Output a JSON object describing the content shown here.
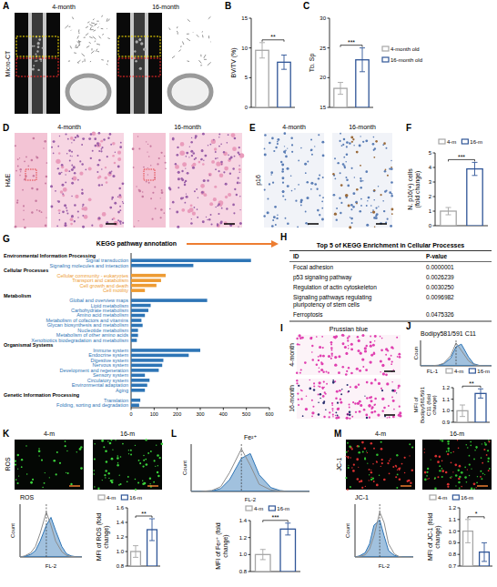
{
  "chart_data": [
    {
      "panel": "B",
      "type": "bar",
      "y_label": "BV/TV (%)",
      "categories": [
        null
      ],
      "series": [
        {
          "color": "#a6a6a6",
          "values": [
            9.6
          ],
          "errors": [
            1.3
          ]
        },
        {
          "color": "#2f5597",
          "values": [
            7.6
          ],
          "errors": [
            1.2
          ]
        }
      ],
      "ylim": [
        0,
        15
      ],
      "yticks": [
        0,
        5,
        10,
        15
      ],
      "significance": "**"
    },
    {
      "panel": "C",
      "type": "bar",
      "y_label": "Tb. Sp",
      "categories": [
        null
      ],
      "series": [
        {
          "name": "4-month old",
          "color": "#a6a6a6",
          "values": [
            18.2
          ],
          "errors": [
            1.0
          ]
        },
        {
          "name": "16-month old",
          "color": "#2f5597",
          "values": [
            23
          ],
          "errors": [
            2.0
          ]
        }
      ],
      "ylim": [
        15,
        30
      ],
      "yticks": [
        15,
        20,
        25,
        30
      ],
      "legend": "right",
      "significance": "***"
    },
    {
      "panel": "F",
      "type": "bar",
      "y_label": "N. p16(+) cells (fold change)",
      "categories": [
        null
      ],
      "series": [
        {
          "name": "4-m",
          "color": "#a6a6a6",
          "values": [
            1
          ],
          "errors": [
            0.25
          ]
        },
        {
          "name": "16-m",
          "color": "#2f5597",
          "values": [
            3.9
          ],
          "errors": [
            0.45
          ]
        }
      ],
      "ylim": [
        0,
        5
      ],
      "yticks": [
        0,
        1,
        2,
        3,
        4,
        5
      ],
      "legend": "top",
      "significance": "***"
    },
    {
      "panel": "G",
      "type": "bar",
      "orientation": "horizontal",
      "title": "KEGG pathway annotation",
      "xlim": [
        0,
        600
      ],
      "xticks": [
        0,
        100,
        200,
        300,
        400,
        500,
        600
      ],
      "groups": [
        {
          "name": "Environmental Information Processing",
          "color": "#2e75b6",
          "categories": [
            "Signal transduction",
            "Signaling molecules and interaction"
          ],
          "values": [
            520,
            270
          ]
        },
        {
          "name": "Cellular Processes",
          "color": "#ed9b33",
          "categories": [
            "Cellular community - eukaryotes",
            "Transport and catabolism",
            "Cell growth and death",
            "Cell motility"
          ],
          "values": [
            150,
            130,
            110,
            60
          ]
        },
        {
          "name": "Metabolism",
          "color": "#2e75b6",
          "categories": [
            "Global and overview maps",
            "Lipid metabolism",
            "Carbohydrate metabolism",
            "Amino acid metabolism",
            "Metabolism of cofactors and vitamins",
            "Glycan biosynthesis and metabolism",
            "Nucleotide metabolism",
            "Metabolism of other amino acids",
            "Xenobiotics biodegradation and metabolism"
          ],
          "values": [
            330,
            85,
            75,
            60,
            45,
            50,
            30,
            30,
            25
          ]
        },
        {
          "name": "Organismal Systems",
          "color": "#2e75b6",
          "categories": [
            "Immune system",
            "Endocrine system",
            "Digestive system",
            "Nervous system",
            "Development and regeneration",
            "Sensory system",
            "Circulatory system",
            "Environmental adaptation",
            "Aging"
          ],
          "values": [
            300,
            250,
            140,
            135,
            120,
            60,
            80,
            70,
            60
          ]
        },
        {
          "name": "Genetic Information Processing",
          "color": "#2e75b6",
          "categories": [
            "Translation",
            "Folding, sorting and degradation"
          ],
          "values": [
            40,
            35
          ]
        }
      ]
    },
    {
      "panel": "J",
      "type": "line",
      "title": "Bodipy581/591 C11",
      "x_label": "FL-1",
      "y_label": "Coun",
      "log": "x",
      "xlim": [
        1,
        10000
      ],
      "ylim": [
        0,
        100
      ],
      "tick_labels": false,
      "x": [
        1,
        2,
        5,
        10,
        20,
        50,
        100,
        200,
        500,
        1000,
        2000,
        5000,
        10000
      ],
      "series": [
        {
          "color": "#8c8c8c",
          "type": "line",
          "values": [
            0,
            0,
            1,
            3,
            10,
            40,
            90,
            60,
            20,
            5,
            1,
            0,
            0
          ]
        },
        {
          "color": "#2e75b6",
          "type": "area",
          "values": [
            0,
            0,
            1,
            2,
            8,
            30,
            75,
            85,
            35,
            8,
            2,
            0,
            0
          ]
        }
      ]
    },
    {
      "type": "bar",
      "y_label": "MFI of Bodipy581/591 C11 (fold change)",
      "categories": [
        null
      ],
      "series": [
        {
          "name": "4-m",
          "color": "#a6a6a6",
          "values": [
            1
          ],
          "errors": [
            0.05
          ]
        },
        {
          "name": "16-m",
          "color": "#2f5597",
          "values": [
            1.15
          ],
          "errors": [
            0.04
          ]
        }
      ],
      "ylim": [
        0.9,
        1.2
      ],
      "yticks": [
        0.9,
        {
          "value": 1,
          "label": "1.0"
        },
        1.1,
        1.2
      ],
      "legend": "top",
      "significance": "**"
    },
    {
      "type": "line",
      "title": "ROS",
      "x_label": "FL-2",
      "y_label": "Count",
      "log": "x",
      "xlim": [
        1,
        10000
      ],
      "ylim": [
        0,
        100
      ],
      "tick_labels": false,
      "x": [
        1,
        2,
        5,
        10,
        20,
        50,
        100,
        200,
        500,
        1000,
        2000,
        5000,
        10000
      ],
      "series": [
        {
          "color": "#8c8c8c",
          "type": "line",
          "values": [
            0,
            2,
            8,
            20,
            45,
            85,
            60,
            30,
            10,
            3,
            1,
            0,
            0
          ]
        },
        {
          "color": "#2e75b6",
          "type": "area",
          "values": [
            0,
            1,
            5,
            12,
            30,
            60,
            75,
            50,
            20,
            6,
            2,
            0,
            0
          ]
        }
      ]
    },
    {
      "type": "bar",
      "y_label": "MFI of ROS (fold change)",
      "categories": [
        null
      ],
      "series": [
        {
          "name": "4-m",
          "color": "#a6a6a6",
          "values": [
            1
          ],
          "errors": [
            0.08
          ]
        },
        {
          "name": "16-m",
          "color": "#2f5597",
          "values": [
            1.3
          ],
          "errors": [
            0.15
          ]
        }
      ],
      "ylim": [
        0.8,
        1.6
      ],
      "yticks": [
        0.8,
        {
          "value": 1,
          "label": "1.0"
        },
        1.2,
        1.4,
        1.6
      ],
      "legend": "top",
      "significance": "**"
    },
    {
      "panel": "L",
      "type": "line",
      "title": "Fe²⁺",
      "x_label": "FL-2",
      "y_label": "Count",
      "log": "x",
      "xlim": [
        1,
        10000
      ],
      "ylim": [
        0,
        100
      ],
      "tick_labels": false,
      "x": [
        1,
        2,
        5,
        10,
        20,
        50,
        100,
        200,
        500,
        1000,
        2000,
        5000,
        10000
      ],
      "series": [
        {
          "color": "#8c8c8c",
          "type": "line",
          "values": [
            0,
            0,
            2,
            10,
            40,
            90,
            55,
            15,
            3,
            1,
            0,
            0,
            0
          ]
        },
        {
          "color": "#2e75b6",
          "type": "area",
          "values": [
            0,
            0,
            1,
            6,
            25,
            70,
            80,
            35,
            8,
            2,
            0,
            0,
            0
          ]
        }
      ]
    },
    {
      "type": "bar",
      "y_label": "MFI of Fe²⁺ (fold change)",
      "categories": [
        null
      ],
      "series": [
        {
          "name": "4-m",
          "color": "#a6a6a6",
          "values": [
            1
          ],
          "errors": [
            0.06
          ]
        },
        {
          "name": "16-m",
          "color": "#2f5597",
          "values": [
            1.3
          ],
          "errors": [
            0.07
          ]
        }
      ],
      "ylim": [
        0.8,
        1.4
      ],
      "yticks": [
        0.8,
        {
          "value": 1,
          "label": "1.0"
        },
        1.2,
        1.4
      ],
      "legend": "top",
      "significance": "***"
    },
    {
      "type": "line",
      "title": "JC-1",
      "x_label": "FL-2",
      "y_label": "Count",
      "log": "x",
      "xlim": [
        1,
        10000
      ],
      "ylim": [
        0,
        100
      ],
      "tick_labels": false,
      "x": [
        1,
        2,
        5,
        10,
        20,
        50,
        100,
        200,
        500,
        1000,
        2000,
        5000,
        10000
      ],
      "series": [
        {
          "color": "#8c8c8c",
          "type": "line",
          "values": [
            0,
            1,
            4,
            15,
            40,
            85,
            65,
            25,
            6,
            1,
            0,
            0,
            0
          ]
        },
        {
          "color": "#2e75b6",
          "type": "area",
          "values": [
            0,
            2,
            8,
            25,
            60,
            70,
            40,
            12,
            3,
            1,
            0,
            0,
            0
          ]
        }
      ]
    },
    {
      "type": "bar",
      "y_label": "MFI of JC-1 (fold change)",
      "categories": [
        null
      ],
      "series": [
        {
          "name": "4-m",
          "color": "#a6a6a6",
          "values": [
            1
          ],
          "errors": [
            0.1
          ]
        },
        {
          "name": "16-m",
          "color": "#2f5597",
          "values": [
            0.82
          ],
          "errors": [
            0.08
          ]
        }
      ],
      "ylim": [
        0.7,
        1.2
      ],
      "yticks": [
        0.7,
        0.8,
        0.9,
        {
          "value": 1,
          "label": "1.0"
        },
        1.1,
        1.2
      ],
      "legend": "top",
      "significance": "*"
    }
  ],
  "images": [
    {
      "panel": "A",
      "title": "Micro-CT",
      "labels": [
        "4-month",
        "16-month"
      ]
    },
    {
      "panel": "D",
      "title": "H&E",
      "labels": [
        "4-month",
        "16-month"
      ]
    },
    {
      "panel": "E",
      "title": "p16",
      "labels": [
        "4-month",
        "16-month"
      ]
    },
    {
      "panel": "I",
      "title": "Prussian blue",
      "labels": [
        "4-month",
        "16-month"
      ]
    },
    {
      "panel": "K",
      "title": "ROS",
      "labels": [
        "4-m",
        "16-m"
      ]
    },
    {
      "panel": "M",
      "title": "JC-1",
      "labels": [
        "4-m",
        "16-m"
      ]
    }
  ],
  "table": {
    "panel": "H",
    "title": "Top 5 of KEGG Enrichment in Cellular Processes",
    "columns": [
      "ID",
      "P-value"
    ],
    "rows": [
      [
        "Focal adhesion",
        "0.0000001"
      ],
      [
        "p53 signaling pathway",
        "0.0026239"
      ],
      [
        "Regulation of actin cytoskeleton",
        "0.0030250"
      ],
      [
        "Signaling pathways regulating pluripotency of stem cells",
        "0.0096982"
      ],
      [
        "Ferroptosis",
        "0.0475326"
      ]
    ]
  }
}
